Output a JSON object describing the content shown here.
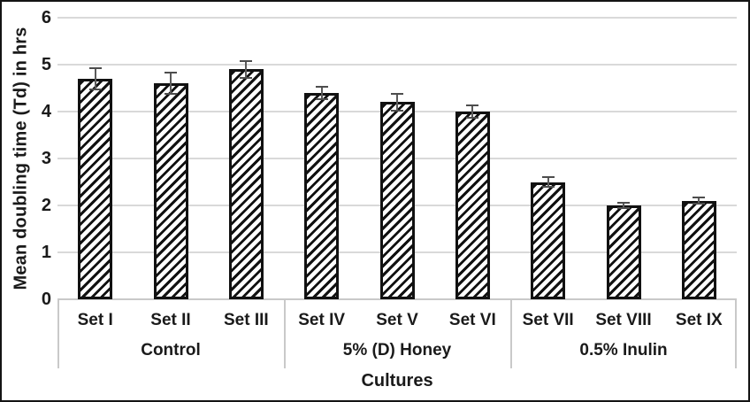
{
  "chart_data": {
    "type": "bar",
    "title": "",
    "ylabel": "Mean doubling time (Td) in hrs",
    "xlabel": "Cultures",
    "ylim": [
      0,
      6
    ],
    "yticks": [
      0,
      1,
      2,
      3,
      4,
      5,
      6
    ],
    "grid": true,
    "legend": "none",
    "bar_style": "black-diagonal-hatch",
    "error_bars": true,
    "groups": [
      {
        "label": "Control",
        "categories": [
          "Set I",
          "Set II",
          "Set III"
        ],
        "values": [
          4.7,
          4.6,
          4.9
        ],
        "errors": [
          0.25,
          0.25,
          0.2
        ]
      },
      {
        "label": "5% (D) Honey",
        "categories": [
          "Set IV",
          "Set V",
          "Set VI"
        ],
        "values": [
          4.4,
          4.2,
          4.0
        ],
        "errors": [
          0.15,
          0.2,
          0.15
        ]
      },
      {
        "label": "0.5% Inulin",
        "categories": [
          "Set VII",
          "Set VIII",
          "Set IX"
        ],
        "values": [
          2.5,
          2.0,
          2.1
        ],
        "errors": [
          0.12,
          0.08,
          0.08
        ]
      }
    ],
    "colors": {
      "bar_fill_hatch": "#111111",
      "bar_border": "#111111",
      "gridline": "#d9d9d9",
      "axis_line": "#c9c9c9",
      "error_bar": "#5a5a5a",
      "text": "#1a1a1a",
      "background": "#ffffff",
      "frame_border": "#141414"
    }
  }
}
